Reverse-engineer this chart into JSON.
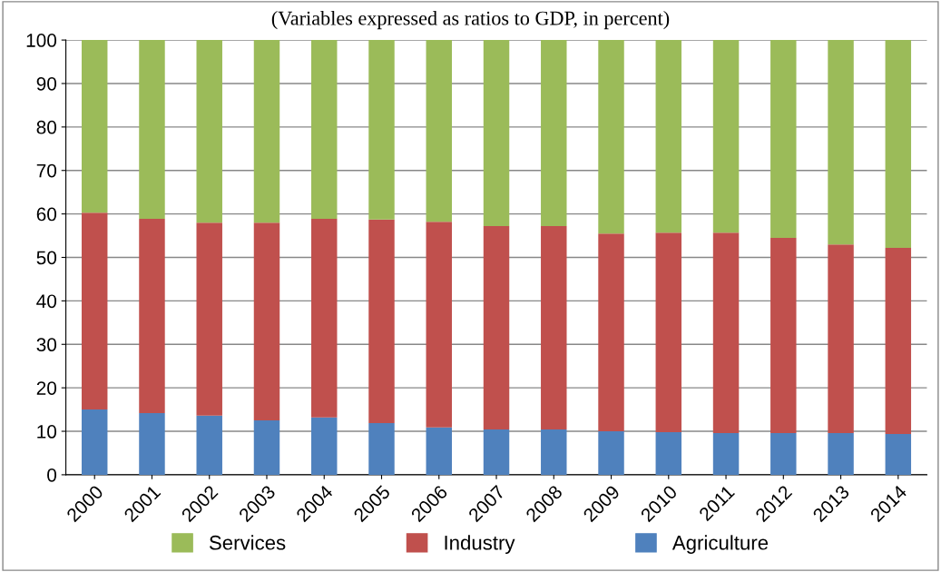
{
  "chart_data": {
    "type": "bar",
    "stacked": true,
    "subtitle": "(Variables expressed as ratios to GDP, in percent)",
    "categories": [
      "2000",
      "2001",
      "2002",
      "2003",
      "2004",
      "2005",
      "2006",
      "2007",
      "2008",
      "2009",
      "2010",
      "2011",
      "2012",
      "2013",
      "2014"
    ],
    "series": [
      {
        "name": "Agriculture",
        "color": "#4f81bd",
        "values": [
          15.0,
          14.2,
          13.6,
          12.5,
          13.2,
          11.9,
          10.9,
          10.4,
          10.4,
          10.0,
          9.8,
          9.6,
          9.6,
          9.6,
          9.4
        ]
      },
      {
        "name": "Industry",
        "color": "#c0504d",
        "values": [
          45.3,
          44.7,
          44.4,
          45.5,
          45.7,
          46.8,
          47.3,
          46.8,
          46.8,
          45.5,
          45.9,
          46.1,
          44.9,
          43.4,
          42.8
        ]
      },
      {
        "name": "Services",
        "color": "#9bbb59",
        "values": [
          39.7,
          41.1,
          42.0,
          42.0,
          41.1,
          41.3,
          41.8,
          42.8,
          42.8,
          44.5,
          44.3,
          44.3,
          45.5,
          47.0,
          47.8
        ]
      }
    ],
    "ylim": [
      0,
      100
    ],
    "yticks": [
      0,
      10,
      20,
      30,
      40,
      50,
      60,
      70,
      80,
      90,
      100
    ],
    "grid": "y",
    "legend": "bottom"
  }
}
